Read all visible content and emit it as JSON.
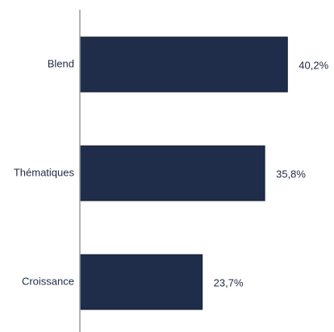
{
  "chart_data": {
    "type": "bar",
    "orientation": "horizontal",
    "categories": [
      "Blend",
      "Thématiques",
      "Croissance"
    ],
    "values": [
      40.2,
      35.8,
      23.7
    ],
    "value_labels": [
      "40,2%",
      "35,8%",
      "23,7%"
    ],
    "unit": "%",
    "xlim": [
      0,
      45
    ],
    "grid": false,
    "legend": "none",
    "colors": {
      "bar": "#1f2d4a",
      "bar_border": "#111a2e",
      "axis": "#9a9a9a",
      "text": "#1f2a44"
    }
  }
}
